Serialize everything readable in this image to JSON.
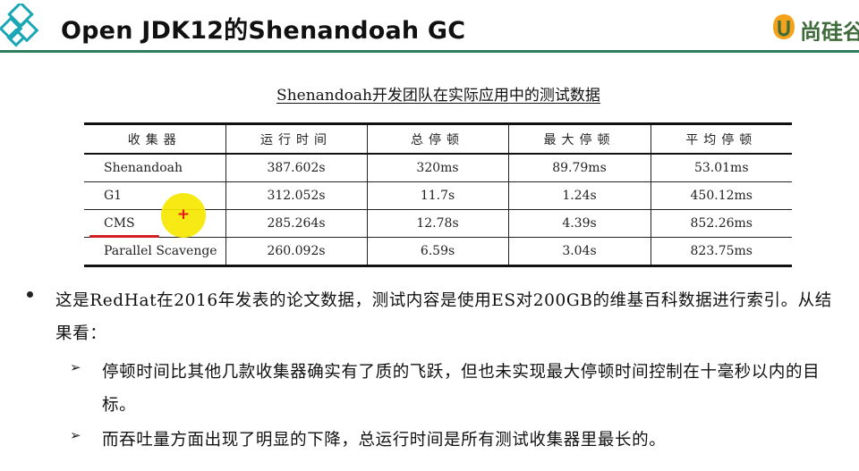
{
  "header": {
    "title": "Open JDK12的Shenandoah GC",
    "brand_text": "尚硅谷",
    "accent_color": "#2f7d5c"
  },
  "table": {
    "caption": "Shenandoah开发团队在实际应用中的测试数据",
    "columns": [
      "收集器",
      "运行时间",
      "总停顿",
      "最大停顿",
      "平均停顿"
    ],
    "rows": [
      {
        "name": "Shenandoah",
        "run_time": "387.602s",
        "total_pause": "320ms",
        "max_pause": "89.79ms",
        "avg_pause": "53.01ms"
      },
      {
        "name": "G1",
        "run_time": "312.052s",
        "total_pause": "11.7s",
        "max_pause": "1.24s",
        "avg_pause": "450.12ms"
      },
      {
        "name": "CMS",
        "run_time": "285.264s",
        "total_pause": "12.78s",
        "max_pause": "4.39s",
        "avg_pause": "852.26ms"
      },
      {
        "name": "Parallel Scavenge",
        "run_time": "260.092s",
        "total_pause": "6.59s",
        "max_pause": "3.04s",
        "avg_pause": "823.75ms"
      }
    ]
  },
  "annotation": {
    "cursor_symbol": "+",
    "highlight_color": "#f6e800",
    "underline_color": "#d21f1f"
  },
  "bullets": {
    "main": "这是RedHat在2016年发表的论文数据，测试内容是使用ES对200GB的维基百科数据进行索引。从结果看：",
    "sub_marker": "➢",
    "sub": [
      "停顿时间比其他几款收集器确实有了质的飞跃，但也未实现最大停顿时间控制在十毫秒以内的目标。",
      "而吞吐量方面出现了明显的下降，总运行时间是所有测试收集器里最长的。"
    ]
  }
}
